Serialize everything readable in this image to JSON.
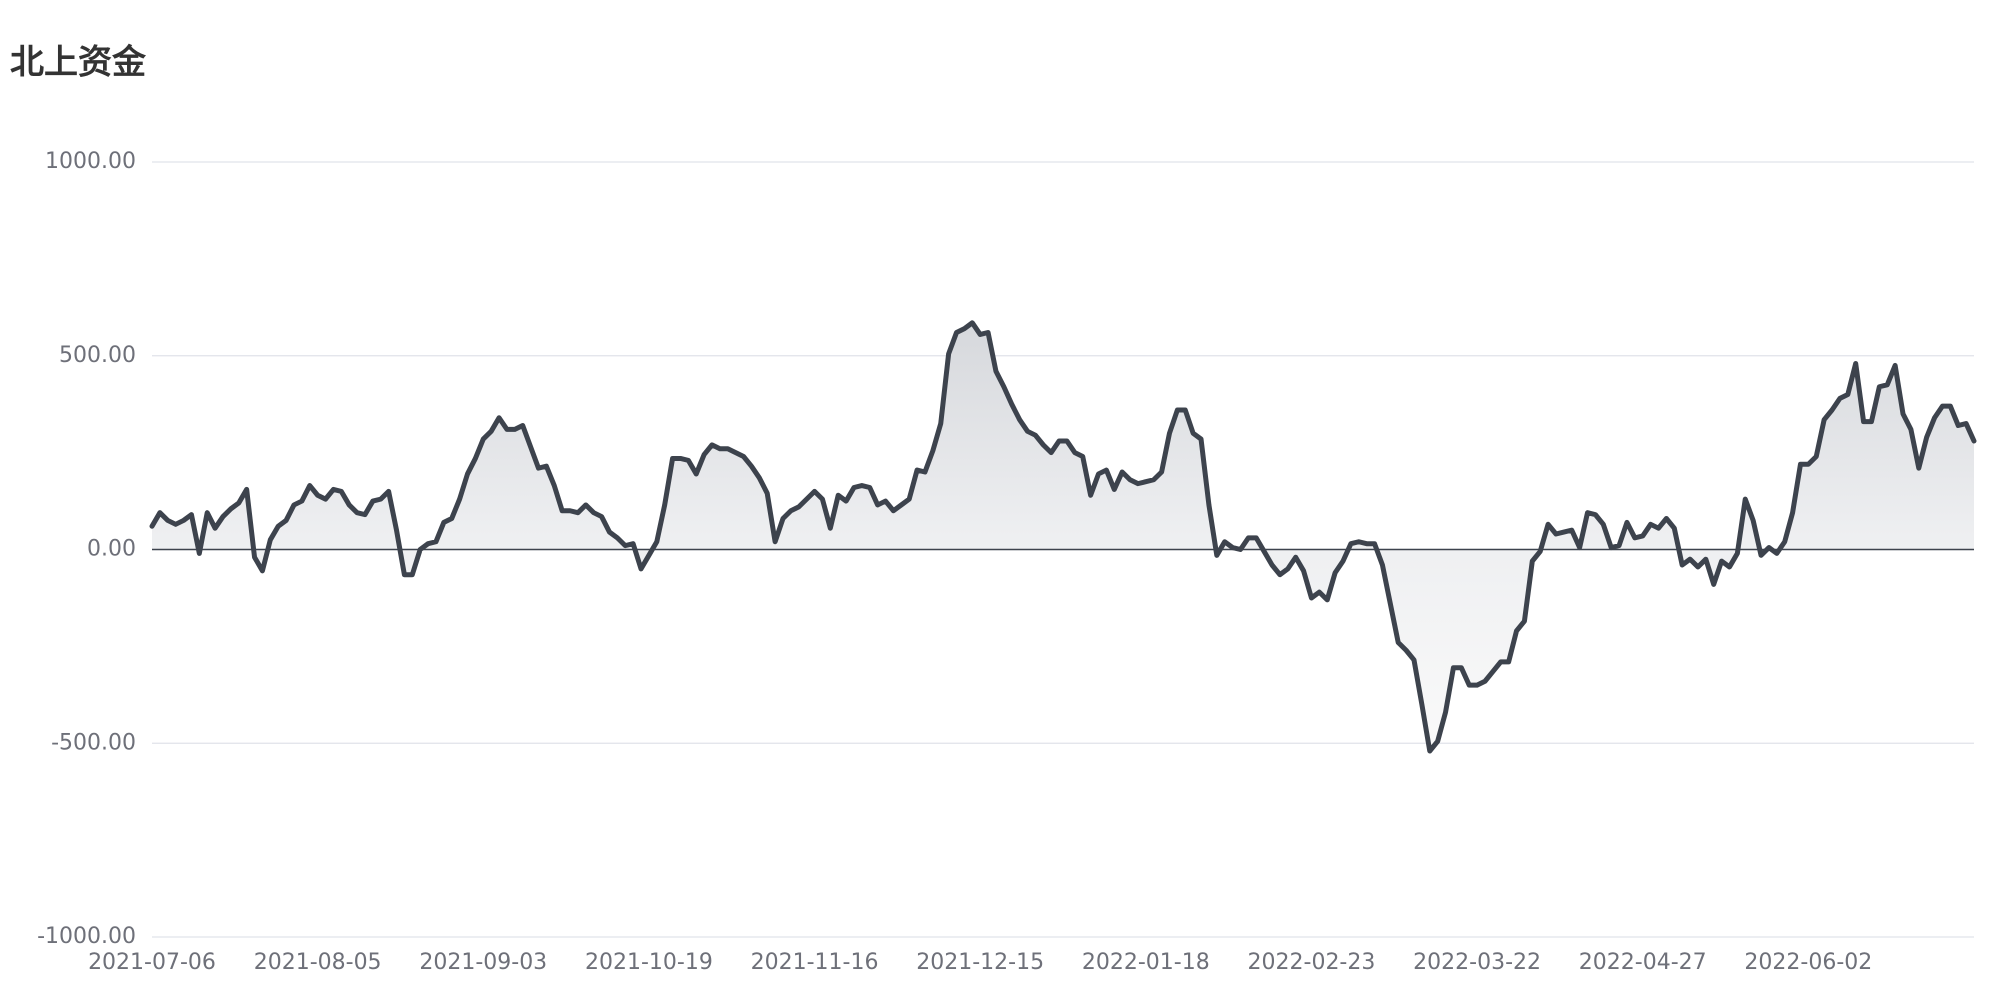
{
  "chart_data": {
    "type": "line",
    "title": "北上资金",
    "categories": [
      "2021-07-06",
      null,
      null,
      null,
      null,
      null,
      null,
      null,
      null,
      null,
      null,
      null,
      null,
      null,
      null,
      null,
      null,
      null,
      null,
      null,
      null,
      "2021-08-05",
      null,
      null,
      null,
      null,
      null,
      null,
      null,
      null,
      null,
      null,
      null,
      null,
      null,
      null,
      null,
      null,
      null,
      null,
      null,
      null,
      "2021-09-03",
      null,
      null,
      null,
      null,
      null,
      null,
      null,
      null,
      null,
      null,
      null,
      null,
      null,
      null,
      null,
      null,
      null,
      null,
      null,
      null,
      "2021-10-19",
      null,
      null,
      null,
      null,
      null,
      null,
      null,
      null,
      null,
      null,
      null,
      null,
      null,
      null,
      null,
      null,
      null,
      null,
      null,
      null,
      "2021-11-16",
      null,
      null,
      null,
      null,
      null,
      null,
      null,
      null,
      null,
      null,
      null,
      null,
      null,
      null,
      null,
      null,
      null,
      null,
      null,
      null,
      "2021-12-15",
      null,
      null,
      null,
      null,
      null,
      null,
      null,
      null,
      null,
      null,
      null,
      null,
      null,
      null,
      null,
      null,
      null,
      null,
      null,
      null,
      "2022-01-18",
      null,
      null,
      null,
      null,
      null,
      null,
      null,
      null,
      null,
      null,
      null,
      null,
      null,
      null,
      null,
      null,
      null,
      null,
      null,
      null,
      "2022-02-23",
      null,
      null,
      null,
      null,
      null,
      null,
      null,
      null,
      null,
      null,
      null,
      null,
      null,
      null,
      null,
      null,
      null,
      null,
      null,
      null,
      "2022-03-22",
      null,
      null,
      null,
      null,
      null,
      null,
      null,
      null,
      null,
      null,
      null,
      null,
      null,
      null,
      null,
      null,
      null,
      null,
      null,
      null,
      "2022-04-27",
      null,
      null,
      null,
      null,
      null,
      null,
      null,
      null,
      null,
      null,
      null,
      null,
      null,
      null,
      null,
      null,
      null,
      null,
      null,
      null,
      "2022-06-02",
      null,
      null,
      null,
      null,
      null,
      null,
      null,
      null,
      null,
      null,
      null,
      null,
      null,
      null,
      null,
      null,
      null,
      null,
      null,
      null,
      null
    ],
    "series": [
      {
        "color": "#3d434d",
        "values": [
          60,
          95,
          75,
          65,
          75,
          90,
          -10,
          95,
          55,
          85,
          105,
          120,
          155,
          -20,
          -55,
          25,
          60,
          75,
          115,
          125,
          165,
          140,
          130,
          155,
          150,
          115,
          95,
          90,
          125,
          130,
          150,
          50,
          -65,
          -65,
          0,
          15,
          20,
          70,
          80,
          130,
          195,
          235,
          285,
          305,
          340,
          310,
          310,
          320,
          265,
          210,
          215,
          165,
          100,
          100,
          95,
          115,
          95,
          85,
          45,
          30,
          10,
          15,
          -50,
          -15,
          20,
          115,
          235,
          235,
          230,
          195,
          245,
          270,
          260,
          260,
          250,
          240,
          215,
          185,
          145,
          20,
          80,
          100,
          110,
          130,
          150,
          130,
          55,
          140,
          125,
          160,
          165,
          160,
          115,
          125,
          100,
          115,
          130,
          205,
          200,
          255,
          325,
          505,
          560,
          570,
          585,
          555,
          560,
          460,
          420,
          375,
          335,
          305,
          295,
          270,
          250,
          280,
          280,
          250,
          240,
          140,
          195,
          205,
          155,
          200,
          180,
          170,
          175,
          180,
          200,
          300,
          360,
          360,
          300,
          285,
          115,
          -15,
          20,
          5,
          0,
          30,
          30,
          -5,
          -40,
          -65,
          -50,
          -20,
          -55,
          -125,
          -110,
          -130,
          -60,
          -30,
          15,
          20,
          15,
          15,
          -40,
          -140,
          -240,
          -260,
          -285,
          -400,
          -520,
          -495,
          -420,
          -305,
          -305,
          -350,
          -350,
          -340,
          -315,
          -290,
          -290,
          -210,
          -185,
          -30,
          -5,
          65,
          40,
          45,
          50,
          5,
          95,
          90,
          65,
          5,
          10,
          70,
          30,
          35,
          65,
          55,
          80,
          55,
          -40,
          -25,
          -45,
          -25,
          -90,
          -30,
          -45,
          -10,
          130,
          75,
          -15,
          5,
          -10,
          20,
          95,
          220,
          220,
          240,
          335,
          360,
          390,
          400,
          480,
          330,
          330,
          420,
          425,
          475,
          350,
          310,
          210,
          290,
          340,
          370,
          370,
          320,
          325,
          280
        ]
      }
    ],
    "ylim": [
      -1000,
      1000
    ],
    "yticks": [
      {
        "value": -1000,
        "label": "-1000.00"
      },
      {
        "value": -500,
        "label": "-500.00"
      },
      {
        "value": 0,
        "label": "0.00"
      },
      {
        "value": 500,
        "label": "500.00"
      },
      {
        "value": 1000,
        "label": "1000.00"
      }
    ],
    "grid": true,
    "area": true
  }
}
